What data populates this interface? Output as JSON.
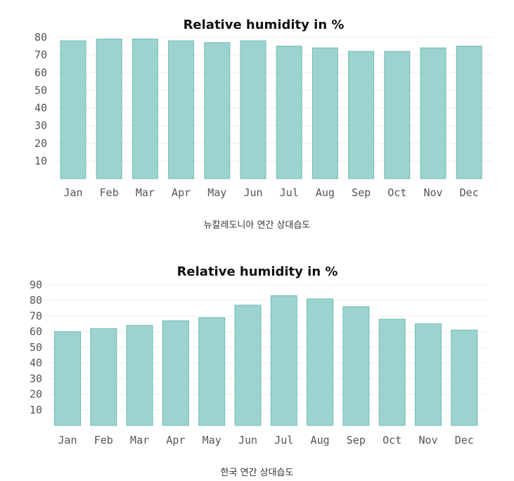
{
  "chart_data": [
    {
      "type": "bar",
      "title": "Relative humidity in %",
      "caption": "뉴칼레도니아 연간 상대습도",
      "xlabel": "",
      "ylabel": "",
      "categories": [
        "Jan",
        "Feb",
        "Mar",
        "Apr",
        "May",
        "Jun",
        "Jul",
        "Aug",
        "Sep",
        "Oct",
        "Nov",
        "Dec"
      ],
      "values": [
        78,
        79,
        79,
        78,
        77,
        78,
        75,
        74,
        72,
        72,
        74,
        75
      ],
      "ylim": [
        0,
        80
      ],
      "yticks": [
        10,
        20,
        30,
        40,
        50,
        60,
        70,
        80
      ],
      "grid": true,
      "bar_color": "#9dd3ce",
      "bar_edge_color": "#6fbcb4"
    },
    {
      "type": "bar",
      "title": "Relative humidity in %",
      "caption": "한국 연간 상대습도",
      "xlabel": "",
      "ylabel": "",
      "categories": [
        "Jan",
        "Feb",
        "Mar",
        "Apr",
        "May",
        "Jun",
        "Jul",
        "Aug",
        "Sep",
        "Oct",
        "Nov",
        "Dec"
      ],
      "values": [
        60,
        62,
        64,
        67,
        69,
        77,
        83,
        81,
        76,
        68,
        65,
        61
      ],
      "ylim": [
        0,
        90
      ],
      "yticks": [
        10,
        20,
        30,
        40,
        50,
        60,
        70,
        80,
        90
      ],
      "grid": true,
      "bar_color": "#9dd3ce",
      "bar_edge_color": "#6fbcb4"
    }
  ]
}
